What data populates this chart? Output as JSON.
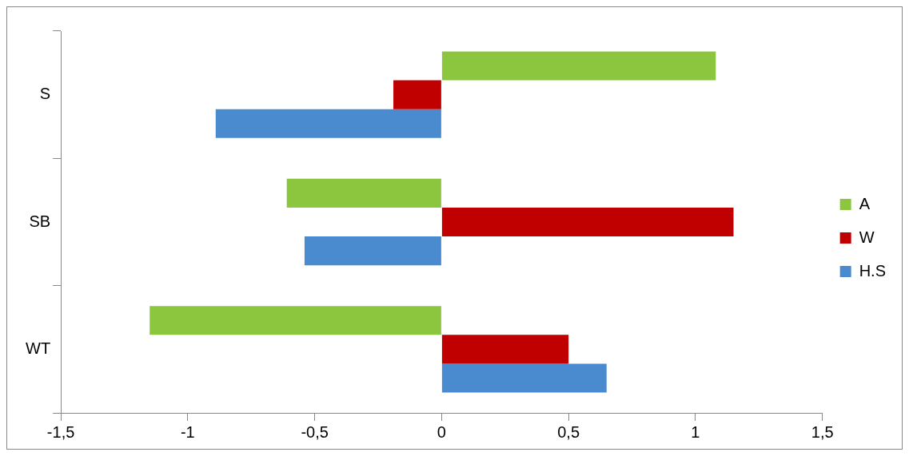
{
  "chart_data": {
    "type": "bar",
    "orientation": "horizontal",
    "categories": [
      "S",
      "SB",
      "WT"
    ],
    "series": [
      {
        "name": "A",
        "color": "#8cc63f",
        "values": [
          1.08,
          -0.61,
          -1.15
        ]
      },
      {
        "name": "W",
        "color": "#c00000",
        "values": [
          -0.19,
          1.15,
          0.5
        ]
      },
      {
        "name": "H.S",
        "color": "#4a8bcf",
        "values": [
          -0.89,
          -0.54,
          0.65
        ]
      }
    ],
    "xlim": [
      -1.5,
      1.5
    ],
    "xticks": [
      {
        "value": -1.5,
        "label": "-1,5"
      },
      {
        "value": -1,
        "label": "-1"
      },
      {
        "value": -0.5,
        "label": "-0,5"
      },
      0,
      {
        "value": 0.5,
        "label": "0,5"
      },
      1,
      {
        "value": 1.5,
        "label": "1,5"
      }
    ],
    "grid": false,
    "legend": "right"
  }
}
